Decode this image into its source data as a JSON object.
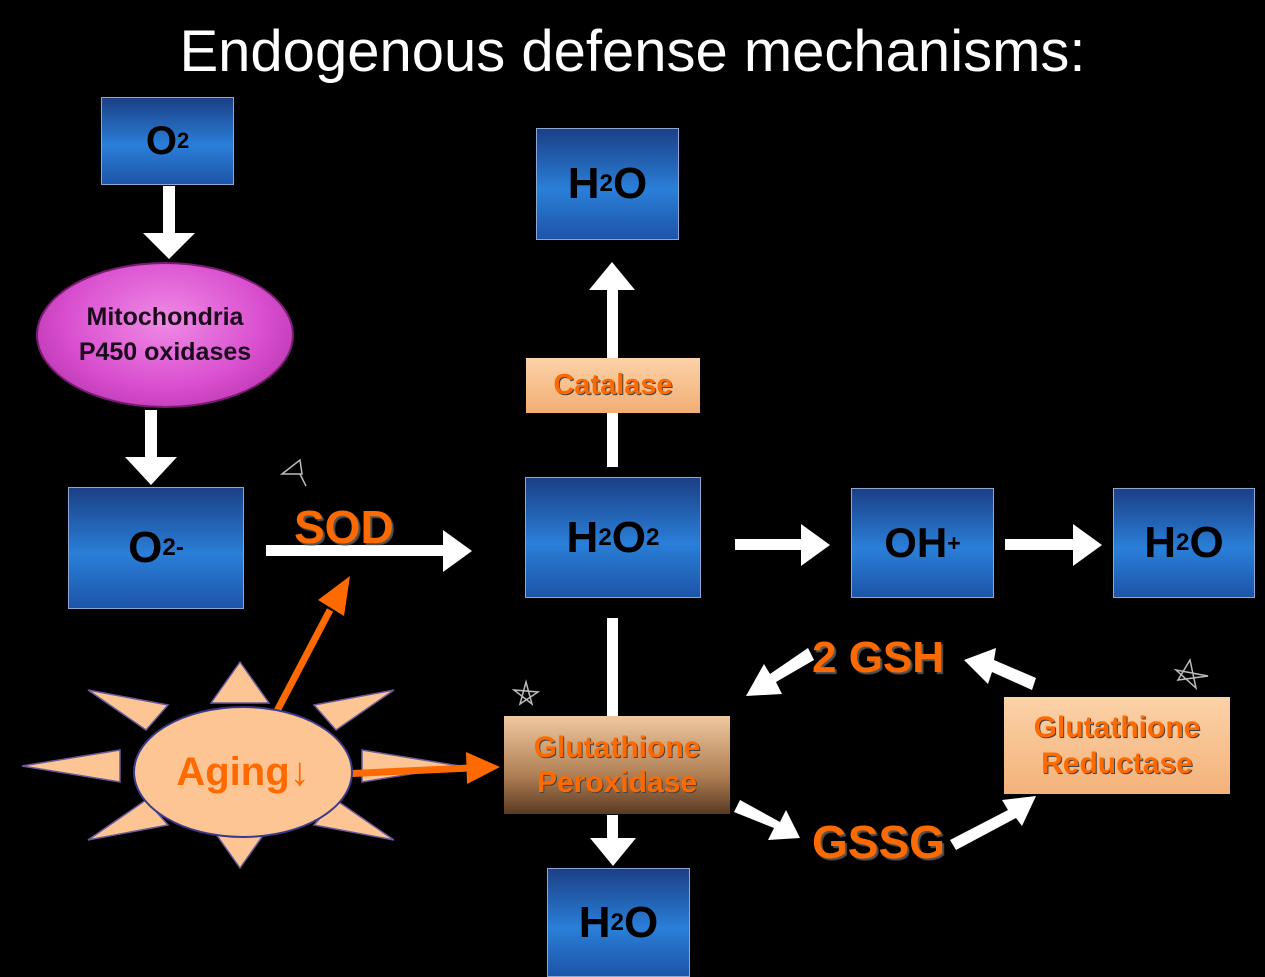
{
  "title": "Endogenous defense mechanisms:",
  "nodes": {
    "o2_top": {
      "main": "O",
      "sub": "2"
    },
    "mito_line1": "Mitochondria",
    "mito_line2": "P450 oxidases",
    "superoxide": {
      "main": "O",
      "sub": "2",
      "sup": "-"
    },
    "h2o_top": {
      "main": "H",
      "sub": "2",
      "tail": "O"
    },
    "h2o2": {
      "main": "H",
      "sub": "2",
      "mid": "O",
      "sub2": "2"
    },
    "hydroxyl": {
      "main": "OH",
      "sup": "+"
    },
    "h2o_right": {
      "main": "H",
      "sub": "2",
      "tail": "O"
    },
    "h2o_bottom": {
      "main": "H",
      "sub": "2",
      "tail": "O"
    }
  },
  "enzymes": {
    "sod": "SOD",
    "catalase": "Catalase",
    "gpx_line1": "Glutathione",
    "gpx_line2": "Peroxidase",
    "gr_line1": "Glutathione",
    "gr_line2": "Reductase"
  },
  "metabolites": {
    "gsh": "2 GSH",
    "gssg": "GSSG"
  },
  "aging": "Aging↓",
  "colors": {
    "background": "#000000",
    "box_blue": "#2a7fd8",
    "enzyme_orange": "#ff6a00",
    "mito_magenta": "#d94fcf",
    "aging_peach": "#fcc593",
    "arrow_white": "#ffffff",
    "arrow_orange": "#ff6a00"
  }
}
